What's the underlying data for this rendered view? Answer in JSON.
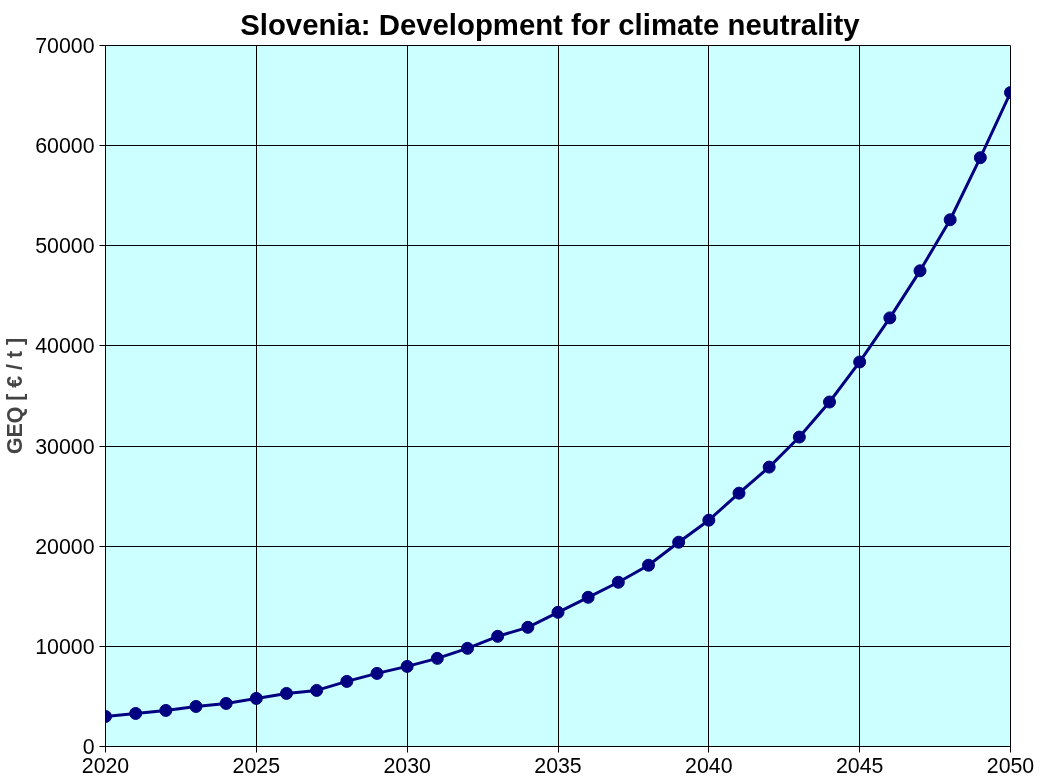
{
  "chart_data": {
    "type": "line",
    "title": "Slovenia:   Development for climate neutrality",
    "ylabel": "GEQ [ € / t ]",
    "x": [
      2020,
      2021,
      2022,
      2023,
      2024,
      2025,
      2026,
      2027,
      2028,
      2029,
      2030,
      2031,
      2032,
      2033,
      2034,
      2035,
      2036,
      2037,
      2038,
      2039,
      2040,
      2041,
      2042,
      2043,
      2044,
      2045,
      2046,
      2047,
      2048,
      2049,
      2050
    ],
    "series": [
      {
        "color": "#000080",
        "values": [
          3000,
          3300,
          3600,
          4000,
          4300,
          4800,
          5300,
          5600,
          6500,
          7300,
          8000,
          8800,
          9800,
          11000,
          11900,
          13400,
          14900,
          16400,
          18100,
          20400,
          22600,
          25300,
          27900,
          30900,
          34400,
          38400,
          42800,
          47500,
          52600,
          58800,
          65300
        ]
      }
    ],
    "xlim": [
      2020,
      2050
    ],
    "xticks": [
      2020,
      2025,
      2030,
      2035,
      2040,
      2045,
      2050
    ],
    "ylim": [
      0,
      70000
    ],
    "yticks": [
      0,
      10000,
      20000,
      30000,
      40000,
      50000,
      60000,
      70000
    ],
    "grid": true,
    "marker": "circle",
    "line_style": "solid"
  }
}
